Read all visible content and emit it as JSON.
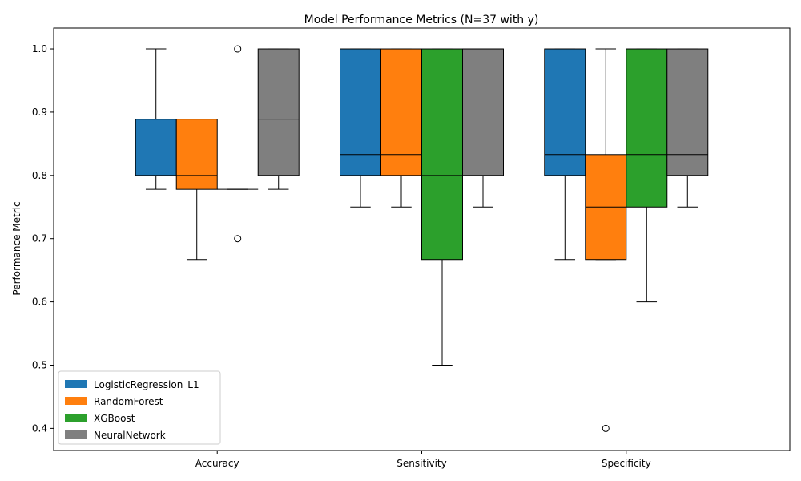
{
  "chart_data": {
    "type": "box",
    "title": "Model Performance Metrics (N=37 with y)",
    "xlabel": "",
    "ylabel": "Performance Metric",
    "ylim": [
      0.365,
      1.033
    ],
    "yticks": [
      0.4,
      0.5,
      0.6,
      0.7,
      0.8,
      0.9,
      1.0
    ],
    "ytick_labels": [
      "0.4",
      "0.5",
      "0.6",
      "0.7",
      "0.8",
      "0.9",
      "1.0"
    ],
    "categories": [
      "Accuracy",
      "Sensitivity",
      "Specificity"
    ],
    "legend_position": "lower-left",
    "grid": false,
    "series": [
      {
        "name": "LogisticRegression_L1",
        "color": "#1f77b4",
        "boxes": [
          {
            "whisker_low": 0.778,
            "q1": 0.8,
            "median": 0.889,
            "q3": 0.889,
            "whisker_high": 1.0,
            "outliers": []
          },
          {
            "whisker_low": 0.75,
            "q1": 0.8,
            "median": 0.833,
            "q3": 1.0,
            "whisker_high": 1.0,
            "outliers": []
          },
          {
            "whisker_low": 0.667,
            "q1": 0.8,
            "median": 0.833,
            "q3": 1.0,
            "whisker_high": 1.0,
            "outliers": []
          }
        ]
      },
      {
        "name": "RandomForest",
        "color": "#ff7f0e",
        "boxes": [
          {
            "whisker_low": 0.667,
            "q1": 0.778,
            "median": 0.8,
            "q3": 0.889,
            "whisker_high": 0.889,
            "outliers": []
          },
          {
            "whisker_low": 0.75,
            "q1": 0.8,
            "median": 0.833,
            "q3": 1.0,
            "whisker_high": 1.0,
            "outliers": []
          },
          {
            "whisker_low": 0.667,
            "q1": 0.667,
            "median": 0.75,
            "q3": 0.833,
            "whisker_high": 1.0,
            "outliers": [
              0.4
            ]
          }
        ]
      },
      {
        "name": "XGBoost",
        "color": "#2ca02c",
        "boxes": [
          {
            "whisker_low": 0.778,
            "q1": 0.778,
            "median": 0.778,
            "q3": 0.778,
            "whisker_high": 0.778,
            "outliers": [
              0.7,
              1.0
            ]
          },
          {
            "whisker_low": 0.5,
            "q1": 0.667,
            "median": 0.8,
            "q3": 1.0,
            "whisker_high": 1.0,
            "outliers": []
          },
          {
            "whisker_low": 0.6,
            "q1": 0.75,
            "median": 0.833,
            "q3": 1.0,
            "whisker_high": 1.0,
            "outliers": []
          }
        ]
      },
      {
        "name": "NeuralNetwork",
        "color": "#7f7f7f",
        "boxes": [
          {
            "whisker_low": 0.778,
            "q1": 0.8,
            "median": 0.889,
            "q3": 1.0,
            "whisker_high": 1.0,
            "outliers": []
          },
          {
            "whisker_low": 0.75,
            "q1": 0.8,
            "median": 1.0,
            "q3": 1.0,
            "whisker_high": 1.0,
            "outliers": []
          },
          {
            "whisker_low": 0.75,
            "q1": 0.8,
            "median": 0.833,
            "q3": 1.0,
            "whisker_high": 1.0,
            "outliers": []
          }
        ]
      }
    ]
  }
}
